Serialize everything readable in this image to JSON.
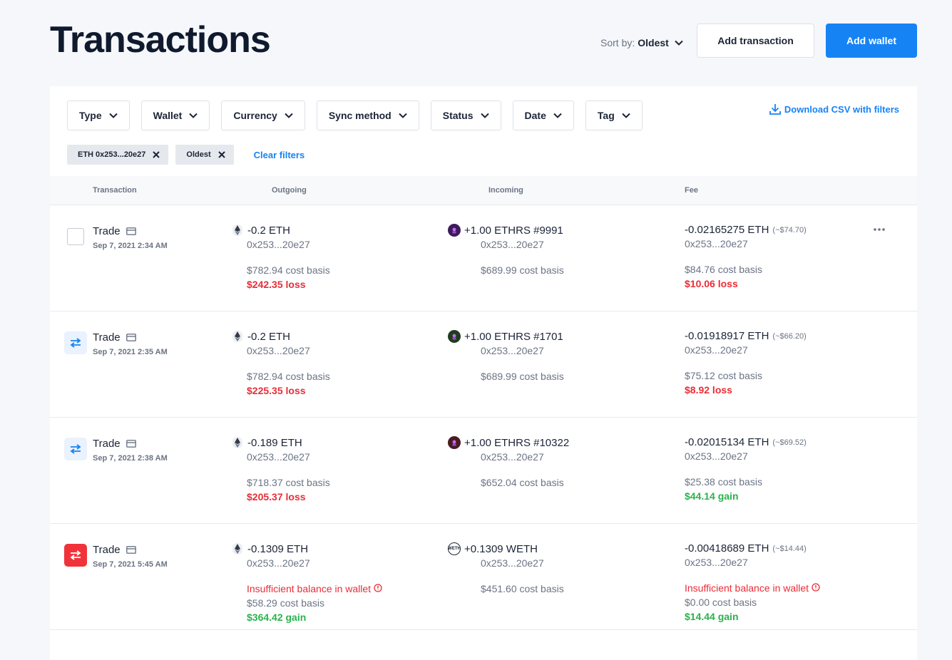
{
  "header": {
    "title": "Transactions",
    "sort_prefix": "Sort by:",
    "sort_value": "Oldest",
    "add_transaction_label": "Add transaction",
    "add_wallet_label": "Add wallet"
  },
  "filters": {
    "items": [
      "Type",
      "Wallet",
      "Currency",
      "Sync method",
      "Status",
      "Date",
      "Tag"
    ],
    "download_label": "Download CSV with filters",
    "chips": [
      "ETH 0x253...20e27",
      "Oldest"
    ],
    "clear_label": "Clear filters"
  },
  "table": {
    "columns": [
      "Transaction",
      "Outgoing",
      "Incoming",
      "Fee"
    ],
    "rows": [
      {
        "type": "Trade",
        "date": "Sep 7, 2021 2:34 AM",
        "icon": "checkbox",
        "outgoing": {
          "amount": "-0.2 ETH",
          "address": "0x253...20e27",
          "warning": "",
          "cost_basis": "$782.94 cost basis",
          "result": "$242.35 loss",
          "result_kind": "loss"
        },
        "incoming": {
          "amount": "+1.00 ETHRS #9991",
          "address": "0x253...20e27",
          "cost_basis": "$689.99 cost basis",
          "nft_color": "#3d1a5e"
        },
        "fee": {
          "amount": "-0.02165275 ETH",
          "usd": "(~$74.70)",
          "address": "0x253...20e27",
          "warning": "",
          "cost_basis": "$84.76 cost basis",
          "result": "$10.06 loss",
          "result_kind": "loss"
        }
      },
      {
        "type": "Trade",
        "date": "Sep 7, 2021 2:35 AM",
        "icon": "transfer-blue",
        "outgoing": {
          "amount": "-0.2 ETH",
          "address": "0x253...20e27",
          "warning": "",
          "cost_basis": "$782.94 cost basis",
          "result": "$225.35 loss",
          "result_kind": "loss"
        },
        "incoming": {
          "amount": "+1.00 ETHRS #1701",
          "address": "0x253...20e27",
          "cost_basis": "$689.99 cost basis",
          "nft_color": "#1f3d1c"
        },
        "fee": {
          "amount": "-0.01918917 ETH",
          "usd": "(~$66.20)",
          "address": "0x253...20e27",
          "warning": "",
          "cost_basis": "$75.12 cost basis",
          "result": "$8.92 loss",
          "result_kind": "loss"
        }
      },
      {
        "type": "Trade",
        "date": "Sep 7, 2021 2:38 AM",
        "icon": "transfer-blue",
        "outgoing": {
          "amount": "-0.189 ETH",
          "address": "0x253...20e27",
          "warning": "",
          "cost_basis": "$718.37 cost basis",
          "result": "$205.37 loss",
          "result_kind": "loss"
        },
        "incoming": {
          "amount": "+1.00 ETHRS #10322",
          "address": "0x253...20e27",
          "cost_basis": "$652.04 cost basis",
          "nft_color": "#4a1a22"
        },
        "fee": {
          "amount": "-0.02015134 ETH",
          "usd": "(~$69.52)",
          "address": "0x253...20e27",
          "warning": "",
          "cost_basis": "$25.38 cost basis",
          "result": "$44.14 gain",
          "result_kind": "gain"
        }
      },
      {
        "type": "Trade",
        "date": "Sep 7, 2021 5:45 AM",
        "icon": "transfer-red",
        "outgoing": {
          "amount": "-0.1309 ETH",
          "address": "0x253...20e27",
          "warning": "Insufficient balance in wallet",
          "cost_basis": "$58.29 cost basis",
          "result": "$364.42 gain",
          "result_kind": "gain"
        },
        "incoming": {
          "amount": "+0.1309 WETH",
          "address": "0x253...20e27",
          "cost_basis": "$451.60 cost basis",
          "nft_color": "weth"
        },
        "fee": {
          "amount": "-0.00418689 ETH",
          "usd": "(~$14.44)",
          "address": "0x253...20e27",
          "warning": "Insufficient balance in wallet",
          "cost_basis": "$0.00 cost basis",
          "result": "$14.44 gain",
          "result_kind": "gain"
        }
      }
    ]
  },
  "colors": {
    "accent": "#1683f5",
    "loss": "#eb2c36",
    "gain": "#2bb24c",
    "danger_icon": "#f0333b"
  }
}
